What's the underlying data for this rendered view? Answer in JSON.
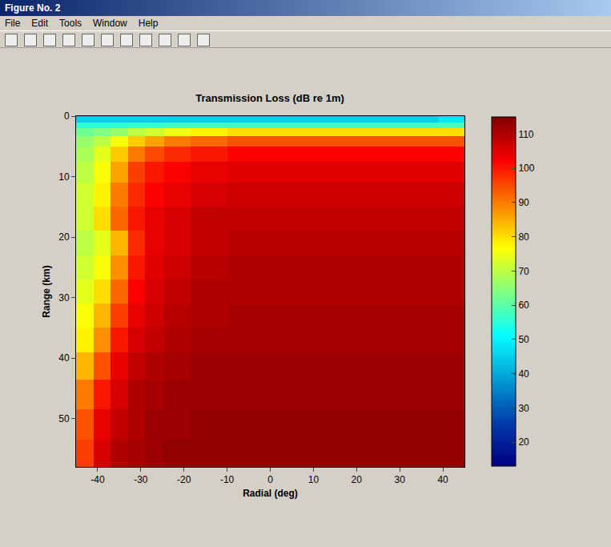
{
  "window": {
    "title": "Figure No. 2",
    "menu": [
      "File",
      "Edit",
      "Tools",
      "Window",
      "Help"
    ]
  },
  "chart_data": {
    "type": "heatmap",
    "title": "Transmission Loss (dB re 1m)",
    "x_label": "Radial (deg)",
    "y_label": "Range (km)",
    "x": [
      -43,
      -39,
      -35,
      -31,
      -27,
      -22,
      -15,
      -5,
      5,
      15,
      25,
      35,
      43
    ],
    "y": [
      0.5,
      1.5,
      2.5,
      4,
      6,
      9,
      13,
      17,
      21,
      25,
      29,
      33,
      37,
      41,
      46,
      51,
      56
    ],
    "z": [
      [
        45,
        45,
        45,
        45,
        45,
        45,
        45,
        45,
        45,
        45,
        45,
        45,
        48
      ],
      [
        55,
        55,
        55,
        56,
        56,
        57,
        57,
        57,
        57,
        57,
        57,
        57,
        58
      ],
      [
        62,
        64,
        66,
        70,
        72,
        75,
        78,
        80,
        80,
        80,
        80,
        80,
        80
      ],
      [
        66,
        70,
        76,
        82,
        86,
        90,
        92,
        94,
        94,
        94,
        94,
        94,
        94
      ],
      [
        68,
        74,
        82,
        90,
        95,
        98,
        100,
        102,
        102,
        102,
        102,
        102,
        102
      ],
      [
        70,
        76,
        86,
        96,
        100,
        102,
        104,
        105,
        105,
        105,
        105,
        105,
        105
      ],
      [
        72,
        78,
        90,
        98,
        102,
        104,
        106,
        107,
        107,
        107,
        107,
        107,
        107
      ],
      [
        72,
        80,
        92,
        100,
        104,
        106,
        108,
        108,
        108,
        108,
        108,
        108,
        108
      ],
      [
        70,
        74,
        84,
        98,
        104,
        106,
        108,
        109,
        109,
        109,
        109,
        109,
        109
      ],
      [
        72,
        76,
        88,
        100,
        105,
        107,
        109,
        110,
        110,
        110,
        110,
        110,
        110
      ],
      [
        74,
        80,
        92,
        102,
        106,
        108,
        110,
        110,
        110,
        110,
        110,
        110,
        110
      ],
      [
        76,
        84,
        96,
        104,
        107,
        109,
        110,
        111,
        111,
        111,
        111,
        111,
        111
      ],
      [
        78,
        88,
        100,
        106,
        108,
        110,
        111,
        111,
        111,
        111,
        111,
        111,
        111
      ],
      [
        84,
        94,
        104,
        108,
        110,
        111,
        112,
        112,
        112,
        112,
        112,
        112,
        112
      ],
      [
        90,
        100,
        106,
        110,
        111,
        112,
        112,
        112,
        112,
        112,
        112,
        112,
        112
      ],
      [
        94,
        104,
        108,
        110,
        112,
        112,
        113,
        113,
        113,
        113,
        113,
        113,
        113
      ],
      [
        96,
        106,
        110,
        111,
        112,
        113,
        113,
        113,
        113,
        113,
        113,
        113,
        113
      ]
    ],
    "xlim": [
      -45,
      45
    ],
    "xticks": [
      -40,
      -30,
      -20,
      -10,
      0,
      10,
      20,
      30,
      40
    ],
    "ylim": [
      58,
      0
    ],
    "yticks": [
      0,
      10,
      20,
      30,
      40,
      50
    ],
    "colorbar_range": [
      13,
      115
    ],
    "colorbar_ticks": [
      20,
      30,
      40,
      50,
      60,
      70,
      80,
      90,
      100,
      110
    ]
  }
}
